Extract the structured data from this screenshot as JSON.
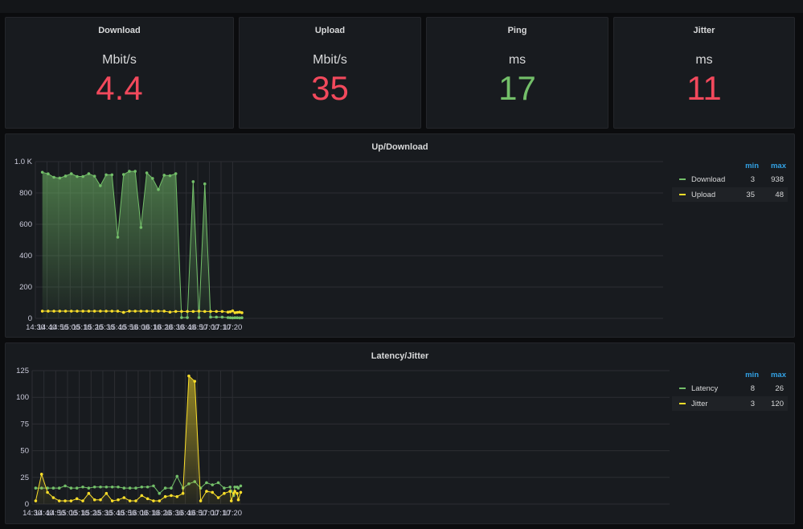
{
  "stats": [
    {
      "title": "Download",
      "unit": "Mbit/s",
      "value": "4.4",
      "color": "#f2495c"
    },
    {
      "title": "Upload",
      "unit": "Mbit/s",
      "value": "35",
      "color": "#f2495c"
    },
    {
      "title": "Ping",
      "unit": "ms",
      "value": "17",
      "color": "#73bf69"
    },
    {
      "title": "Jitter",
      "unit": "ms",
      "value": "11",
      "color": "#f2495c"
    }
  ],
  "legend_headers": {
    "min": "min",
    "max": "max"
  },
  "chart_data": [
    {
      "type": "area",
      "title": "Up/Download",
      "ylim": [
        0,
        1000
      ],
      "y_ticks": [
        0,
        200,
        400,
        600,
        800,
        1000
      ],
      "y_tick_labels": [
        "0",
        "200",
        "400",
        "600",
        "800",
        "1.0 K"
      ],
      "x_range": [
        870,
        1411
      ],
      "x_ticks": [
        870,
        880,
        890,
        900,
        910,
        920,
        930,
        940,
        950,
        960,
        970,
        980,
        990,
        1000,
        1010,
        1020,
        1030,
        1040
      ],
      "x_tick_labels": [
        "14:30",
        "14:40",
        "14:50",
        "15:00",
        "15:10",
        "15:20",
        "15:30",
        "15:40",
        "15:50",
        "16:00",
        "16:10",
        "16:20",
        "16:30",
        "16:40",
        "16:50",
        "17:00",
        "17:10",
        "17:20"
      ],
      "series": [
        {
          "name": "Download",
          "color": "#73bf69",
          "fill": true,
          "min": "3",
          "max": "938",
          "x": [
            876,
            881,
            886,
            891,
            896,
            901,
            906,
            911,
            916,
            921,
            926,
            931,
            936,
            941,
            946,
            951,
            956,
            961,
            966,
            971,
            976,
            981,
            986,
            991,
            996,
            1001,
            1006,
            1011,
            1016,
            1021,
            1026,
            1031,
            1036,
            1038,
            1040,
            1042,
            1044,
            1046,
            1048
          ],
          "y": [
            932,
            922,
            900,
            895,
            908,
            923,
            905,
            905,
            923,
            907,
            846,
            916,
            916,
            518,
            918,
            938,
            938,
            580,
            928,
            893,
            822,
            913,
            910,
            923,
            5,
            5,
            872,
            5,
            858,
            8,
            8,
            8,
            5,
            4,
            3,
            4,
            4,
            3,
            4
          ]
        },
        {
          "name": "Upload",
          "color": "#fade2a",
          "fill": false,
          "min": "35",
          "max": "48",
          "x": [
            876,
            881,
            886,
            891,
            896,
            901,
            906,
            911,
            916,
            921,
            926,
            931,
            936,
            941,
            946,
            951,
            956,
            961,
            966,
            971,
            976,
            981,
            986,
            991,
            996,
            1001,
            1006,
            1011,
            1016,
            1021,
            1026,
            1031,
            1036,
            1038,
            1040,
            1042,
            1044,
            1046,
            1048
          ],
          "y": [
            46,
            46,
            46,
            46,
            46,
            46,
            46,
            46,
            46,
            46,
            46,
            46,
            46,
            46,
            38,
            46,
            46,
            46,
            46,
            46,
            46,
            46,
            40,
            44,
            44,
            44,
            44,
            46,
            44,
            44,
            44,
            44,
            40,
            42,
            48,
            36,
            38,
            40,
            36
          ]
        }
      ]
    },
    {
      "type": "area",
      "title": "Latency/Jitter",
      "ylim": [
        0,
        125
      ],
      "y_ticks": [
        0,
        25,
        50,
        75,
        100,
        125
      ],
      "y_tick_labels": [
        "0",
        "25",
        "50",
        "75",
        "100",
        "125"
      ],
      "x_range": [
        870,
        1411
      ],
      "x_ticks": [
        870,
        880,
        890,
        900,
        910,
        920,
        930,
        940,
        950,
        960,
        970,
        980,
        990,
        1000,
        1010,
        1020,
        1030,
        1040
      ],
      "x_tick_labels": [
        "14:30",
        "14:40",
        "14:50",
        "15:00",
        "15:10",
        "15:20",
        "15:30",
        "15:40",
        "15:50",
        "16:00",
        "16:10",
        "16:20",
        "16:30",
        "16:40",
        "16:50",
        "17:00",
        "17:10",
        "17:20"
      ],
      "series": [
        {
          "name": "Latency",
          "color": "#73bf69",
          "fill": false,
          "min": "8",
          "max": "26",
          "x": [
            873,
            878,
            883,
            888,
            893,
            898,
            903,
            908,
            913,
            918,
            923,
            928,
            933,
            938,
            943,
            948,
            953,
            958,
            963,
            968,
            973,
            978,
            983,
            988,
            993,
            998,
            1003,
            1008,
            1013,
            1018,
            1023,
            1028,
            1033,
            1038,
            1039,
            1041,
            1042,
            1044,
            1045,
            1047
          ],
          "y": [
            15,
            15,
            15,
            15,
            15,
            17,
            15,
            15,
            16,
            15,
            16,
            16,
            16,
            16,
            16,
            15,
            15,
            15,
            16,
            16,
            17,
            10,
            15,
            15,
            26,
            15,
            19,
            21,
            15,
            20,
            18,
            20,
            15,
            16,
            12,
            8,
            16,
            16,
            15,
            17
          ]
        },
        {
          "name": "Jitter",
          "color": "#fade2a",
          "fill": true,
          "min": "3",
          "max": "120",
          "x": [
            873,
            878,
            883,
            888,
            893,
            898,
            903,
            908,
            913,
            918,
            923,
            928,
            933,
            938,
            943,
            948,
            953,
            958,
            963,
            968,
            973,
            978,
            983,
            988,
            993,
            998,
            1003,
            1008,
            1013,
            1018,
            1023,
            1028,
            1033,
            1038,
            1039,
            1041,
            1042,
            1044,
            1045,
            1047
          ],
          "y": [
            3,
            28,
            11,
            6,
            3,
            3,
            3,
            5,
            3,
            10,
            4,
            4,
            10,
            3,
            4,
            6,
            3,
            3,
            8,
            5,
            3,
            3,
            7,
            8,
            7,
            10,
            120,
            115,
            3,
            12,
            11,
            6,
            10,
            12,
            3,
            10,
            12,
            10,
            4,
            11
          ]
        }
      ]
    }
  ]
}
